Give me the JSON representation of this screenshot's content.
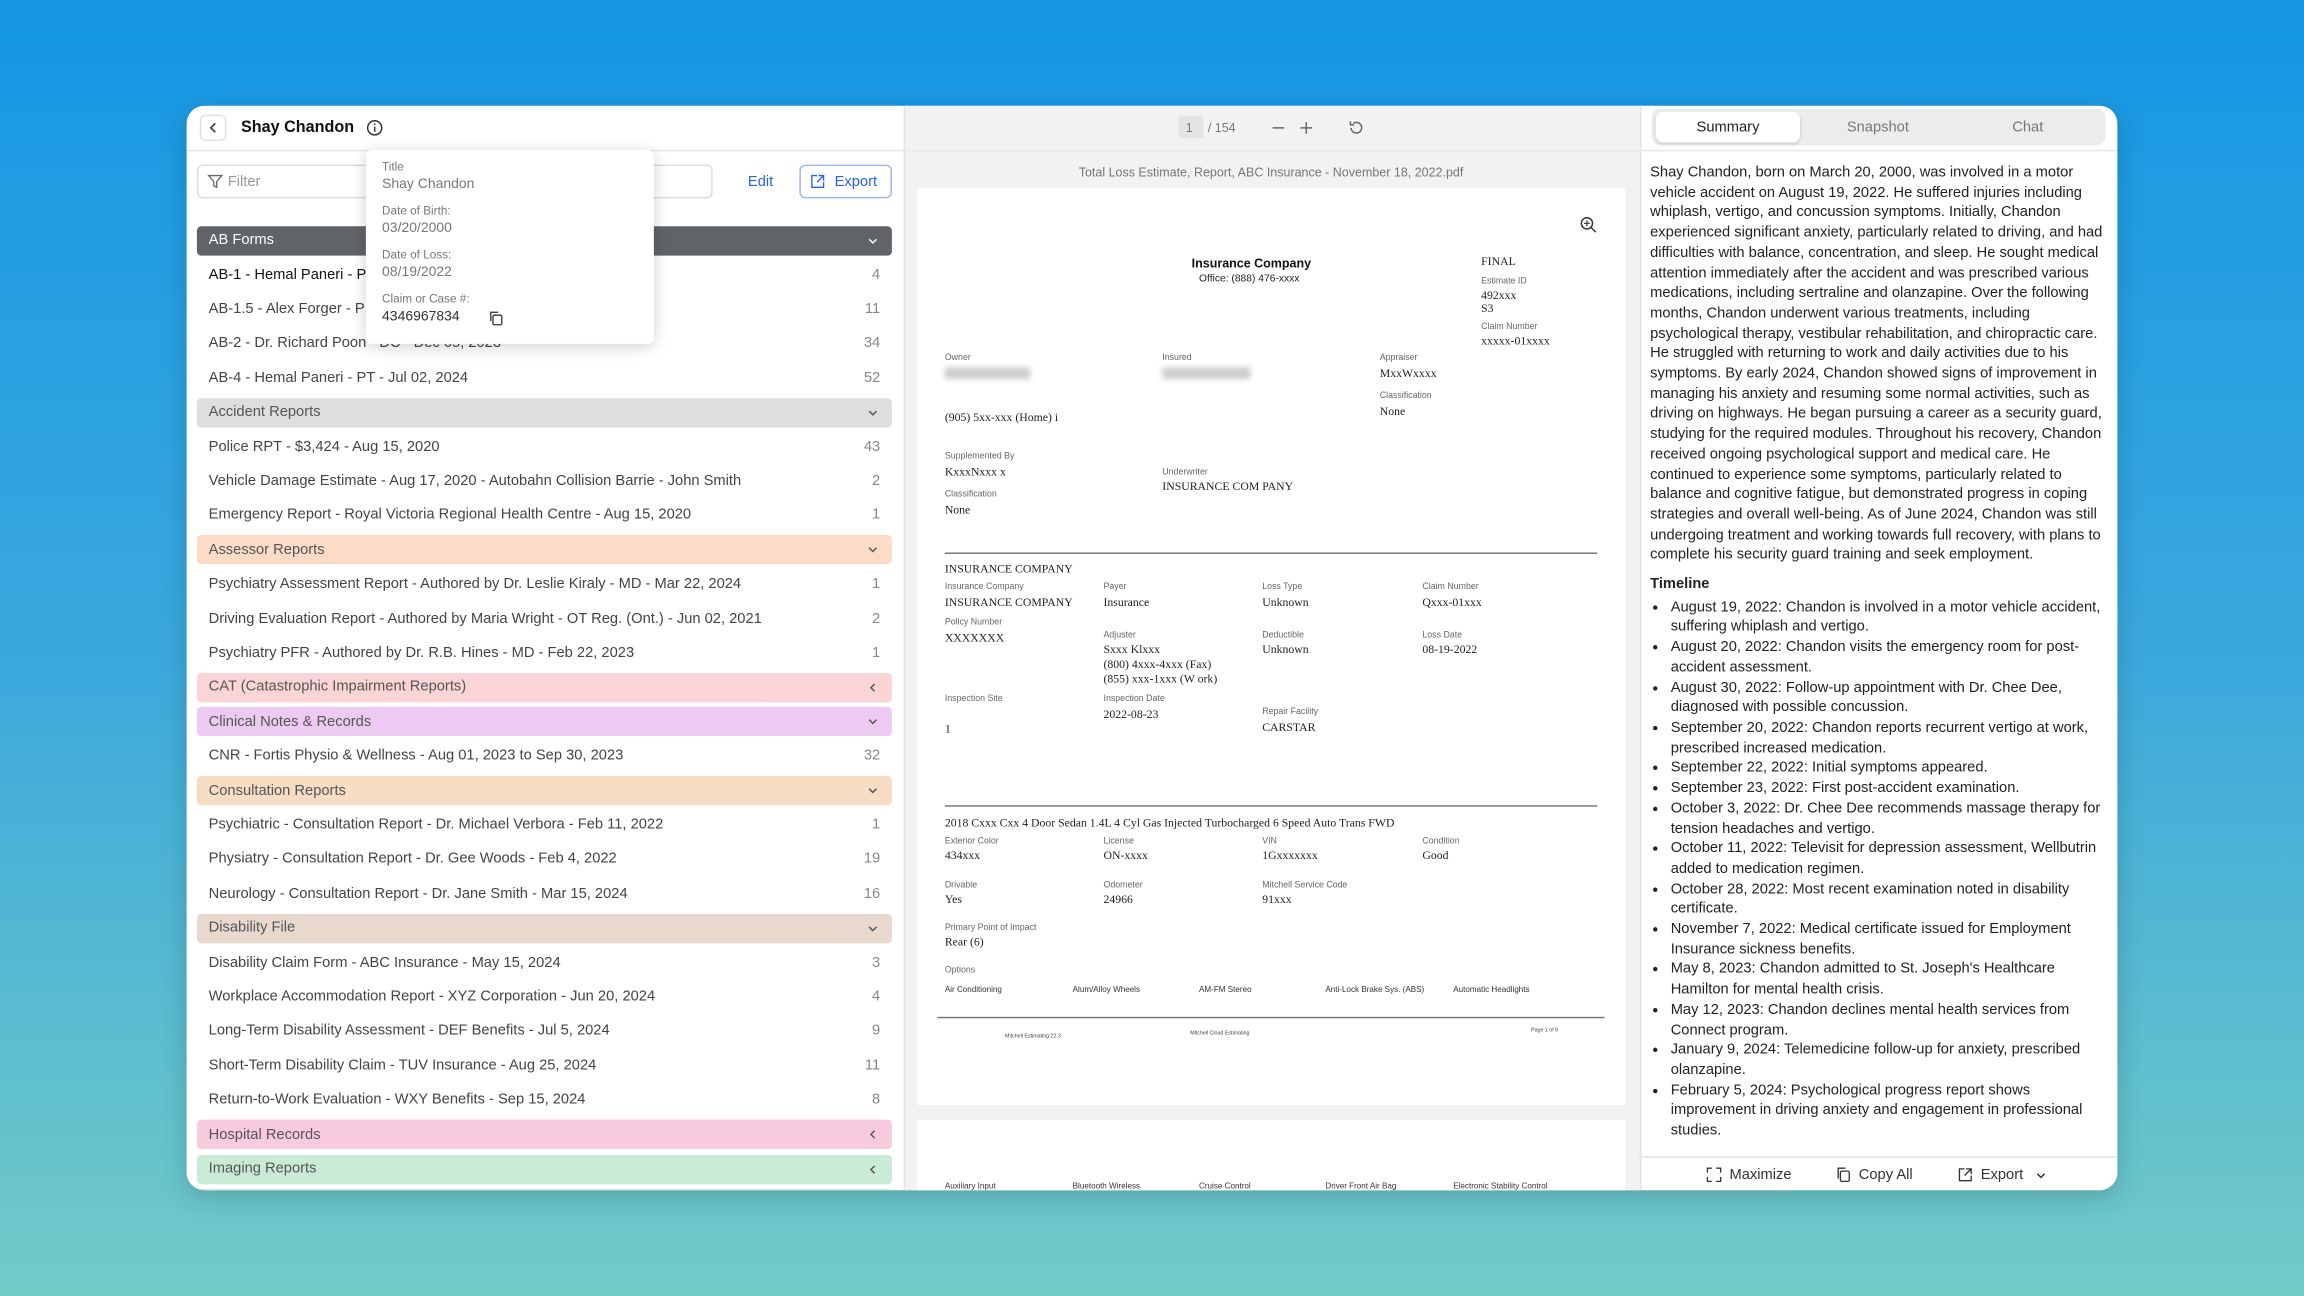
{
  "header": {
    "name": "Shay Chandon"
  },
  "toolbar": {
    "filter": "Filter",
    "edit": "Edit",
    "export": "Export"
  },
  "popup": {
    "fields": [
      {
        "label": "Title",
        "value": "Shay Chandon"
      },
      {
        "label": "Date of Birth:",
        "value": "03/20/2000"
      },
      {
        "label": "Date of Loss:",
        "value": "08/19/2022"
      },
      {
        "label": "Claim or Case #:",
        "value": "4346967834"
      }
    ]
  },
  "groups": [
    {
      "name": "AB Forms",
      "color": "#606368",
      "text_color": "#ffffff",
      "expanded": true,
      "items": [
        {
          "label": "AB-1 - Hemal Paneri - P",
          "count": 4
        },
        {
          "label": "AB-1.5 - Alex Forger - P",
          "count": 11
        },
        {
          "label": "AB-2 - Dr. Richard Poon - DC - Dec 05, 2023",
          "count": 34
        },
        {
          "label": "AB-4 - Hemal Paneri - PT - Jul 02, 2024",
          "count": 52
        }
      ]
    },
    {
      "name": "Accident Reports",
      "color": "#dedede",
      "text_color": "#555555",
      "expanded": true,
      "items": [
        {
          "label": "Police RPT - $3,424 - Aug 15, 2020",
          "count": 43
        },
        {
          "label": "Vehicle Damage Estimate - Aug 17, 2020 - Autobahn Collision Barrie - John Smith",
          "count": 2
        },
        {
          "label": "Emergency Report - Royal Victoria Regional Health Centre - Aug 15, 2020",
          "count": 1
        }
      ]
    },
    {
      "name": "Assessor Reports",
      "color": "#fddcc7",
      "text_color": "#555555",
      "expanded": true,
      "items": [
        {
          "label": "Psychiatry Assessment Report - Authored by Dr. Leslie Kiraly - MD - Mar 22, 2024",
          "count": 1
        },
        {
          "label": "Driving Evaluation Report - Authored by Maria Wright - OT Reg. (Ont.) - Jun 02, 2021",
          "count": 2
        },
        {
          "label": "Psychiatry PFR - Authored by Dr. R.B. Hines - MD - Feb 22, 2023",
          "count": 1
        }
      ]
    },
    {
      "name": "CAT (Catastrophic Impairment Reports)",
      "color": "#fbd4d7",
      "text_color": "#555555",
      "expanded": false,
      "items": []
    },
    {
      "name": "Clinical Notes & Records",
      "color": "#edcaf2",
      "text_color": "#555555",
      "expanded": true,
      "items": [
        {
          "label": "CNR - Fortis Physio & Wellness - Aug 01, 2023 to Sep 30, 2023",
          "count": 32
        }
      ]
    },
    {
      "name": "Consultation Reports",
      "color": "#f7ddc3",
      "text_color": "#555555",
      "expanded": true,
      "items": [
        {
          "label": "Psychiatric - Consultation Report - Dr. Michael Verbora - Feb 11, 2022",
          "count": 1
        },
        {
          "label": "Physiatry - Consultation Report - Dr. Gee Woods - Feb 4, 2022",
          "count": 19
        },
        {
          "label": "Neurology - Consultation Report - Dr. Jane Smith - Mar 15, 2024",
          "count": 16
        }
      ]
    },
    {
      "name": "Disability File",
      "color": "#e8d8ce",
      "text_color": "#555555",
      "expanded": true,
      "items": [
        {
          "label": "Disability Claim Form - ABC Insurance - May 15, 2024",
          "count": 3
        },
        {
          "label": "Workplace Accommodation Report - XYZ Corporation - Jun 20, 2024",
          "count": 4
        },
        {
          "label": "Long-Term Disability Assessment - DEF Benefits - Jul 5, 2024",
          "count": 9
        },
        {
          "label": "Short-Term Disability Claim - TUV Insurance - Aug 25, 2024",
          "count": 11
        },
        {
          "label": "Return-to-Work Evaluation - WXY Benefits - Sep 15, 2024",
          "count": 8
        }
      ]
    },
    {
      "name": "Hospital Records",
      "color": "#f8cadd",
      "text_color": "#555555",
      "expanded": false,
      "items": []
    },
    {
      "name": "Imaging Reports",
      "color": "#c9ebd6",
      "text_color": "#555555",
      "expanded": false,
      "items": []
    }
  ],
  "viewer": {
    "page": "1",
    "total": "/ 154",
    "filename": "Total Loss Estimate, Report, ABC Insurance - November 18, 2022.pdf"
  },
  "document": {
    "texts": [
      "Insurance Company",
      "Office: (888) 476-xxxx",
      "FINAL",
      "Estimate ID",
      "492xxx",
      "S3",
      "Claim Number",
      "xxxxx-01xxxx",
      "Owner",
      "Insured",
      "Appraiser",
      "MxxWxxxx",
      "Classification",
      "None",
      "(905) 5xx-xxx (Home) i",
      "Supplemented By",
      "KxxxNxxx x",
      "Underwriter",
      "INSURANCE COM PANY",
      "Classification",
      "None",
      "INSURANCE COMPANY",
      "Insurance Company",
      "INSURANCE COMPANY",
      "Payer",
      "Insurance",
      "Loss Type",
      "Unknown",
      "Claim Number",
      "Qxxx-01xxx",
      "Policy Number",
      "XXXXXXX",
      "Adjuster",
      "Sxxx Klxxx",
      "(800) 4xxx-4xxx (Fax)",
      "(855) xxx-1xxx (W ork)",
      "Deductible",
      "Unknown",
      "Loss Date",
      "08-19-2022",
      "Inspection Site",
      "1",
      "Inspection Date",
      "2022-08-23",
      "Repair Facility",
      "CARSTAR",
      "2018 Cxxx Cxx 4 Door Sedan 1.4L 4 Cyl Gas Injected Turbocharged 6 Speed Auto Trans FWD",
      "Exterior Color",
      "434xxx",
      "License",
      "ON-xxxx",
      "VIN",
      "1Gxxxxxxx",
      "Condition",
      "Good",
      "Drivable",
      "Yes",
      "Odometer",
      "24966",
      "Mitchell Service Code",
      "91xxx",
      "Primary Point of Impact",
      "Rear (6)",
      "Options",
      "Air Conditioning",
      "Alum/Alloy Wheels",
      "AM-FM Stereo",
      "Anti-Lock Brake Sys. (ABS)",
      "Automatic Headlights",
      "Mitchell Estimating 22.3",
      "Mitchell Cloud Estimating",
      "Page 1 of 9",
      "Auxiliary Input",
      "Bluetooth Wireless",
      "Cruise Control",
      "Driver Front Air Bag",
      "Electronic Stability Control"
    ]
  },
  "panel": {
    "tabs": [
      "Summary",
      "Snapshot",
      "Chat"
    ],
    "summary": "Shay Chandon, born on March 20, 2000, was involved in a motor vehicle accident on August 19, 2022. He suffered injuries including whiplash, vertigo, and concussion symptoms. Initially, Chandon experienced significant anxiety, particularly related to driving, and had difficulties with balance, concentration, and sleep. He sought medical attention immediately after the accident and was prescribed various medications, including sertraline and olanzapine. Over the following months, Chandon underwent various treatments, including psychological therapy, vestibular rehabilitation, and chiropractic care. He struggled with returning to work and daily activities due to his symptoms. By early 2024, Chandon showed signs of improvement in managing his anxiety and resuming some normal activities, such as driving on highways. He began pursuing a career as a security guard, studying for the required modules. Throughout his recovery, Chandon received ongoing psychological support and medical care. He continued to experience some symptoms, particularly related to balance and cognitive fatigue, but demonstrated progress in coping strategies and overall well-being. As of June 2024, Chandon was still undergoing treatment and working towards full recovery, with plans to complete his security guard training and seek employment.",
    "timeline_title": "Timeline",
    "timeline": [
      "August 19, 2022: Chandon is involved in a motor vehicle accident, suffering whiplash and vertigo.",
      "August 20, 2022: Chandon visits the emergency room for post-accident assessment.",
      "August 30, 2022: Follow-up appointment with Dr. Chee Dee, diagnosed with possible concussion.",
      "September 20, 2022: Chandon reports recurrent vertigo at work, prescribed increased medication.",
      "September 22, 2022: Initial symptoms appeared.",
      "September 23, 2022: First post-accident examination.",
      "October 3, 2022: Dr. Chee Dee recommends massage therapy for tension headaches and vertigo.",
      "October 11, 2022: Televisit for depression assessment, Wellbutrin added to medication regimen.",
      "October 28, 2022: Most recent examination noted in disability certificate.",
      "November 7, 2022: Medical certificate issued for Employment Insurance sickness benefits.",
      "May 8, 2023: Chandon admitted to St. Joseph's Healthcare Hamilton for mental health crisis.",
      "May 12, 2023: Chandon declines mental health services from Connect program.",
      "January 9, 2024: Telemedicine follow-up for anxiety, prescribed olanzapine.",
      "February 5, 2024: Psychological progress report shows improvement in driving anxiety and engagement in professional studies."
    ],
    "actions": [
      "Maximize",
      "Copy All",
      "Export"
    ]
  }
}
